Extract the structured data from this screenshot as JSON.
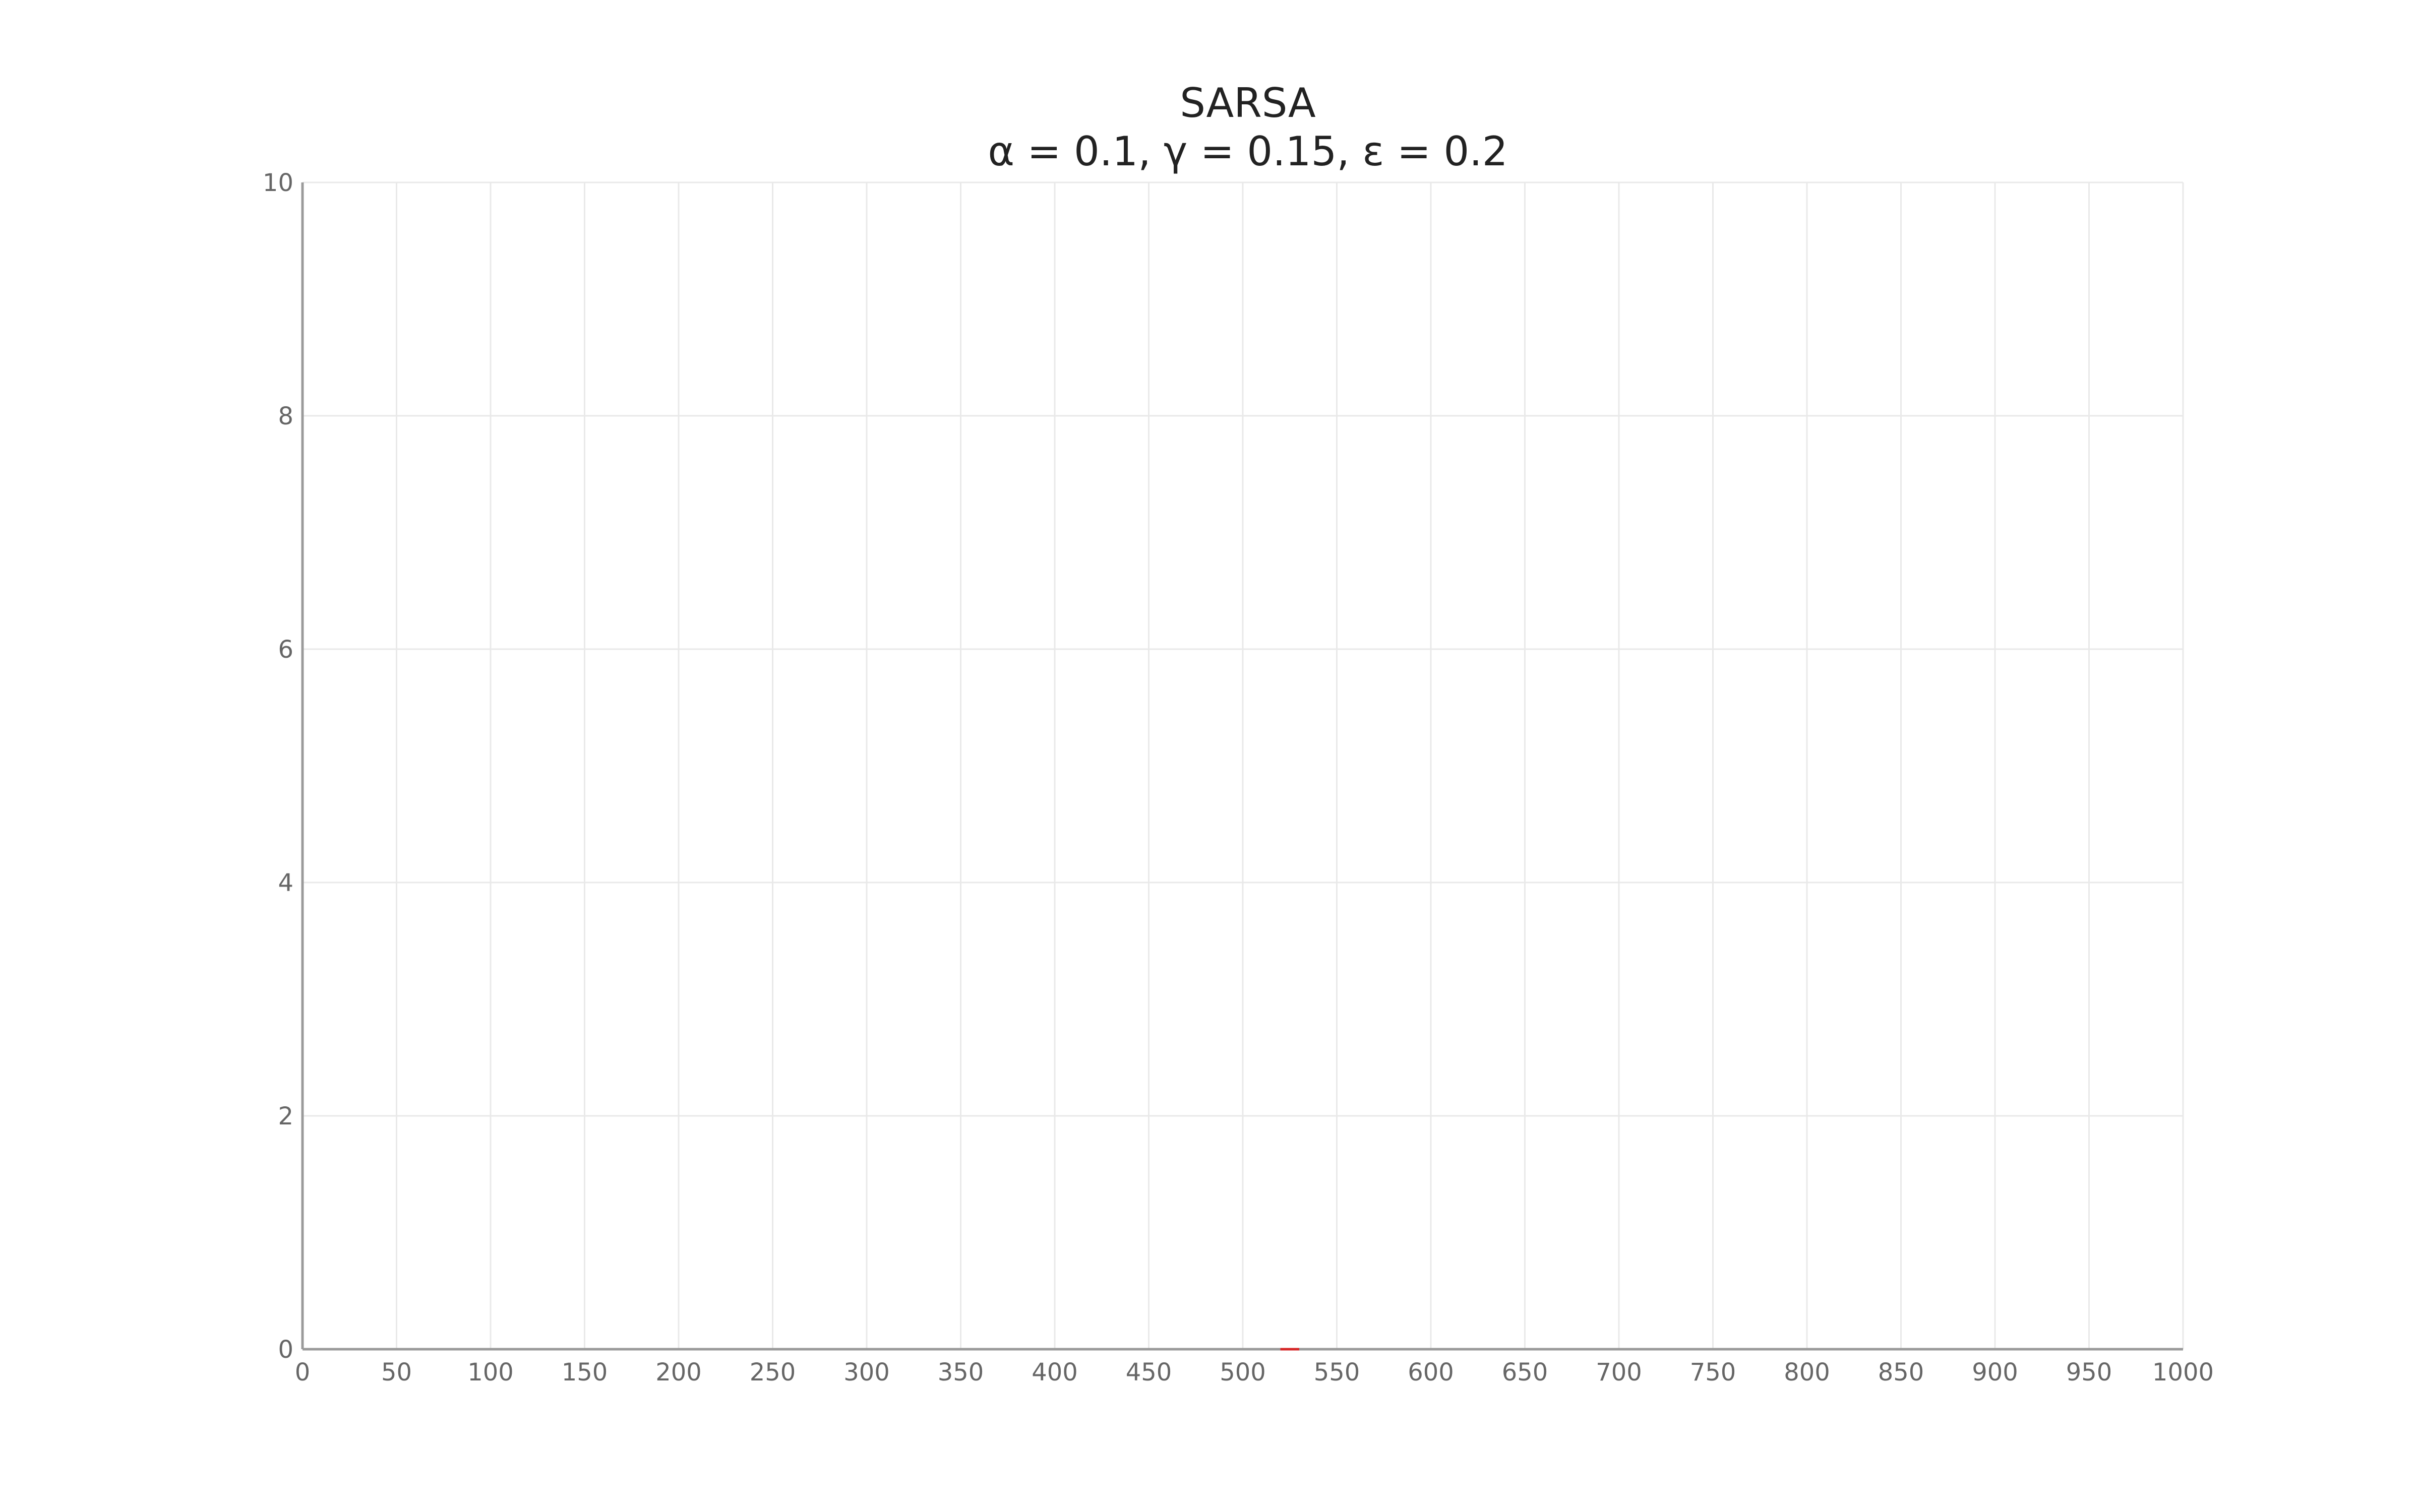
{
  "chart_data": {
    "type": "line",
    "title": "SARSA",
    "subtitle": "α = 0.1, γ = 0.15, ε = 0.2",
    "xlabel": "",
    "ylabel": "",
    "xlim": [
      0,
      1000
    ],
    "ylim": [
      0,
      10
    ],
    "x_ticks": [
      0,
      50,
      100,
      150,
      200,
      250,
      300,
      350,
      400,
      450,
      500,
      550,
      600,
      650,
      700,
      750,
      800,
      850,
      900,
      950,
      1000
    ],
    "y_ticks": [
      0,
      2,
      4,
      6,
      8,
      10
    ],
    "x_tick_labels": [
      "0",
      "50",
      "100",
      "150",
      "200",
      "250",
      "300",
      "350",
      "400",
      "450",
      "500",
      "550",
      "600",
      "650",
      "700",
      "750",
      "800",
      "850",
      "900",
      "950",
      "1000"
    ],
    "y_tick_labels": [
      "0",
      "2",
      "4",
      "6",
      "8",
      "10"
    ],
    "grid": true,
    "legend": "none",
    "series": [
      {
        "color": "#d62728",
        "x": [
          520,
          530
        ],
        "y": [
          0,
          0
        ]
      }
    ],
    "colors": {
      "grid": "#e9e9e9",
      "axis": "#9a9a9a",
      "tick_text": "#666666",
      "title_text": "#222222"
    }
  }
}
